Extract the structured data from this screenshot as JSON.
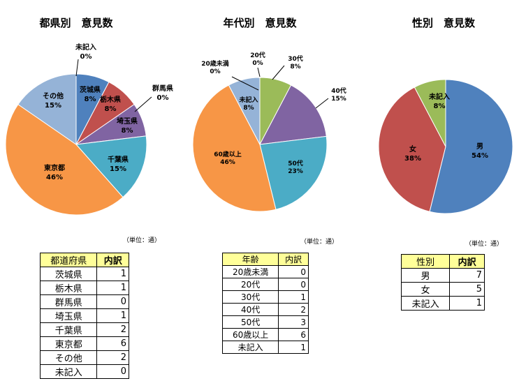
{
  "chart_data": [
    {
      "type": "pie",
      "title": "都県別　意見数",
      "slices": [
        {
          "label": "茨城県",
          "value": 1,
          "pct": "8%",
          "color": "#4f81bd"
        },
        {
          "label": "栃木県",
          "value": 1,
          "pct": "8%",
          "color": "#c0504d"
        },
        {
          "label": "群馬県",
          "value": 0,
          "pct": "0%",
          "color": "#9bbb59"
        },
        {
          "label": "埼玉県",
          "value": 1,
          "pct": "8%",
          "color": "#8064a2"
        },
        {
          "label": "千葉県",
          "value": 2,
          "pct": "15%",
          "color": "#4bacc6"
        },
        {
          "label": "東京都",
          "value": 6,
          "pct": "46%",
          "color": "#f79646"
        },
        {
          "label": "その他",
          "value": 2,
          "pct": "15%",
          "color": "#95b3d7"
        },
        {
          "label": "未記入",
          "value": 0,
          "pct": "0%",
          "color": "#d99694"
        }
      ]
    },
    {
      "type": "pie",
      "title": "年代別　意見数",
      "slices": [
        {
          "label": "20歳未満",
          "value": 0,
          "pct": "0%",
          "color": "#4f81bd"
        },
        {
          "label": "20代",
          "value": 0,
          "pct": "0%",
          "color": "#c0504d"
        },
        {
          "label": "30代",
          "value": 1,
          "pct": "8%",
          "color": "#9bbb59"
        },
        {
          "label": "40代",
          "value": 2,
          "pct": "15%",
          "color": "#8064a2"
        },
        {
          "label": "50代",
          "value": 3,
          "pct": "23%",
          "color": "#4bacc6"
        },
        {
          "label": "60歳以上",
          "value": 6,
          "pct": "46%",
          "color": "#f79646"
        },
        {
          "label": "未記入",
          "value": 1,
          "pct": "8%",
          "color": "#95b3d7"
        }
      ]
    },
    {
      "type": "pie",
      "title": "性別　意見数",
      "slices": [
        {
          "label": "男",
          "value": 7,
          "pct": "54%",
          "color": "#4f81bd"
        },
        {
          "label": "女",
          "value": 5,
          "pct": "38%",
          "color": "#c0504d"
        },
        {
          "label": "未記入",
          "value": 1,
          "pct": "8%",
          "color": "#9bbb59"
        }
      ]
    }
  ],
  "tables": {
    "prefecture": {
      "unit": "（単位：通）",
      "headers": [
        "都道府県",
        "内訳"
      ],
      "rows": [
        [
          "茨城県",
          1
        ],
        [
          "栃木県",
          1
        ],
        [
          "群馬県",
          0
        ],
        [
          "埼玉県",
          1
        ],
        [
          "千葉県",
          2
        ],
        [
          "東京都",
          6
        ],
        [
          "その他",
          2
        ],
        [
          "未記入",
          0
        ]
      ]
    },
    "age": {
      "unit": "（単位：通）",
      "headers": [
        "年齢",
        "内訳"
      ],
      "rows": [
        [
          "20歳未満",
          0
        ],
        [
          "20代",
          0
        ],
        [
          "30代",
          1
        ],
        [
          "40代",
          2
        ],
        [
          "50代",
          3
        ],
        [
          "60歳以上",
          6
        ],
        [
          "未記入",
          1
        ]
      ]
    },
    "gender": {
      "unit": "（単位：通）",
      "headers": [
        "性別",
        "内訳"
      ],
      "rows": [
        [
          "男",
          7
        ],
        [
          "女",
          5
        ],
        [
          "未記入",
          1
        ]
      ]
    }
  }
}
